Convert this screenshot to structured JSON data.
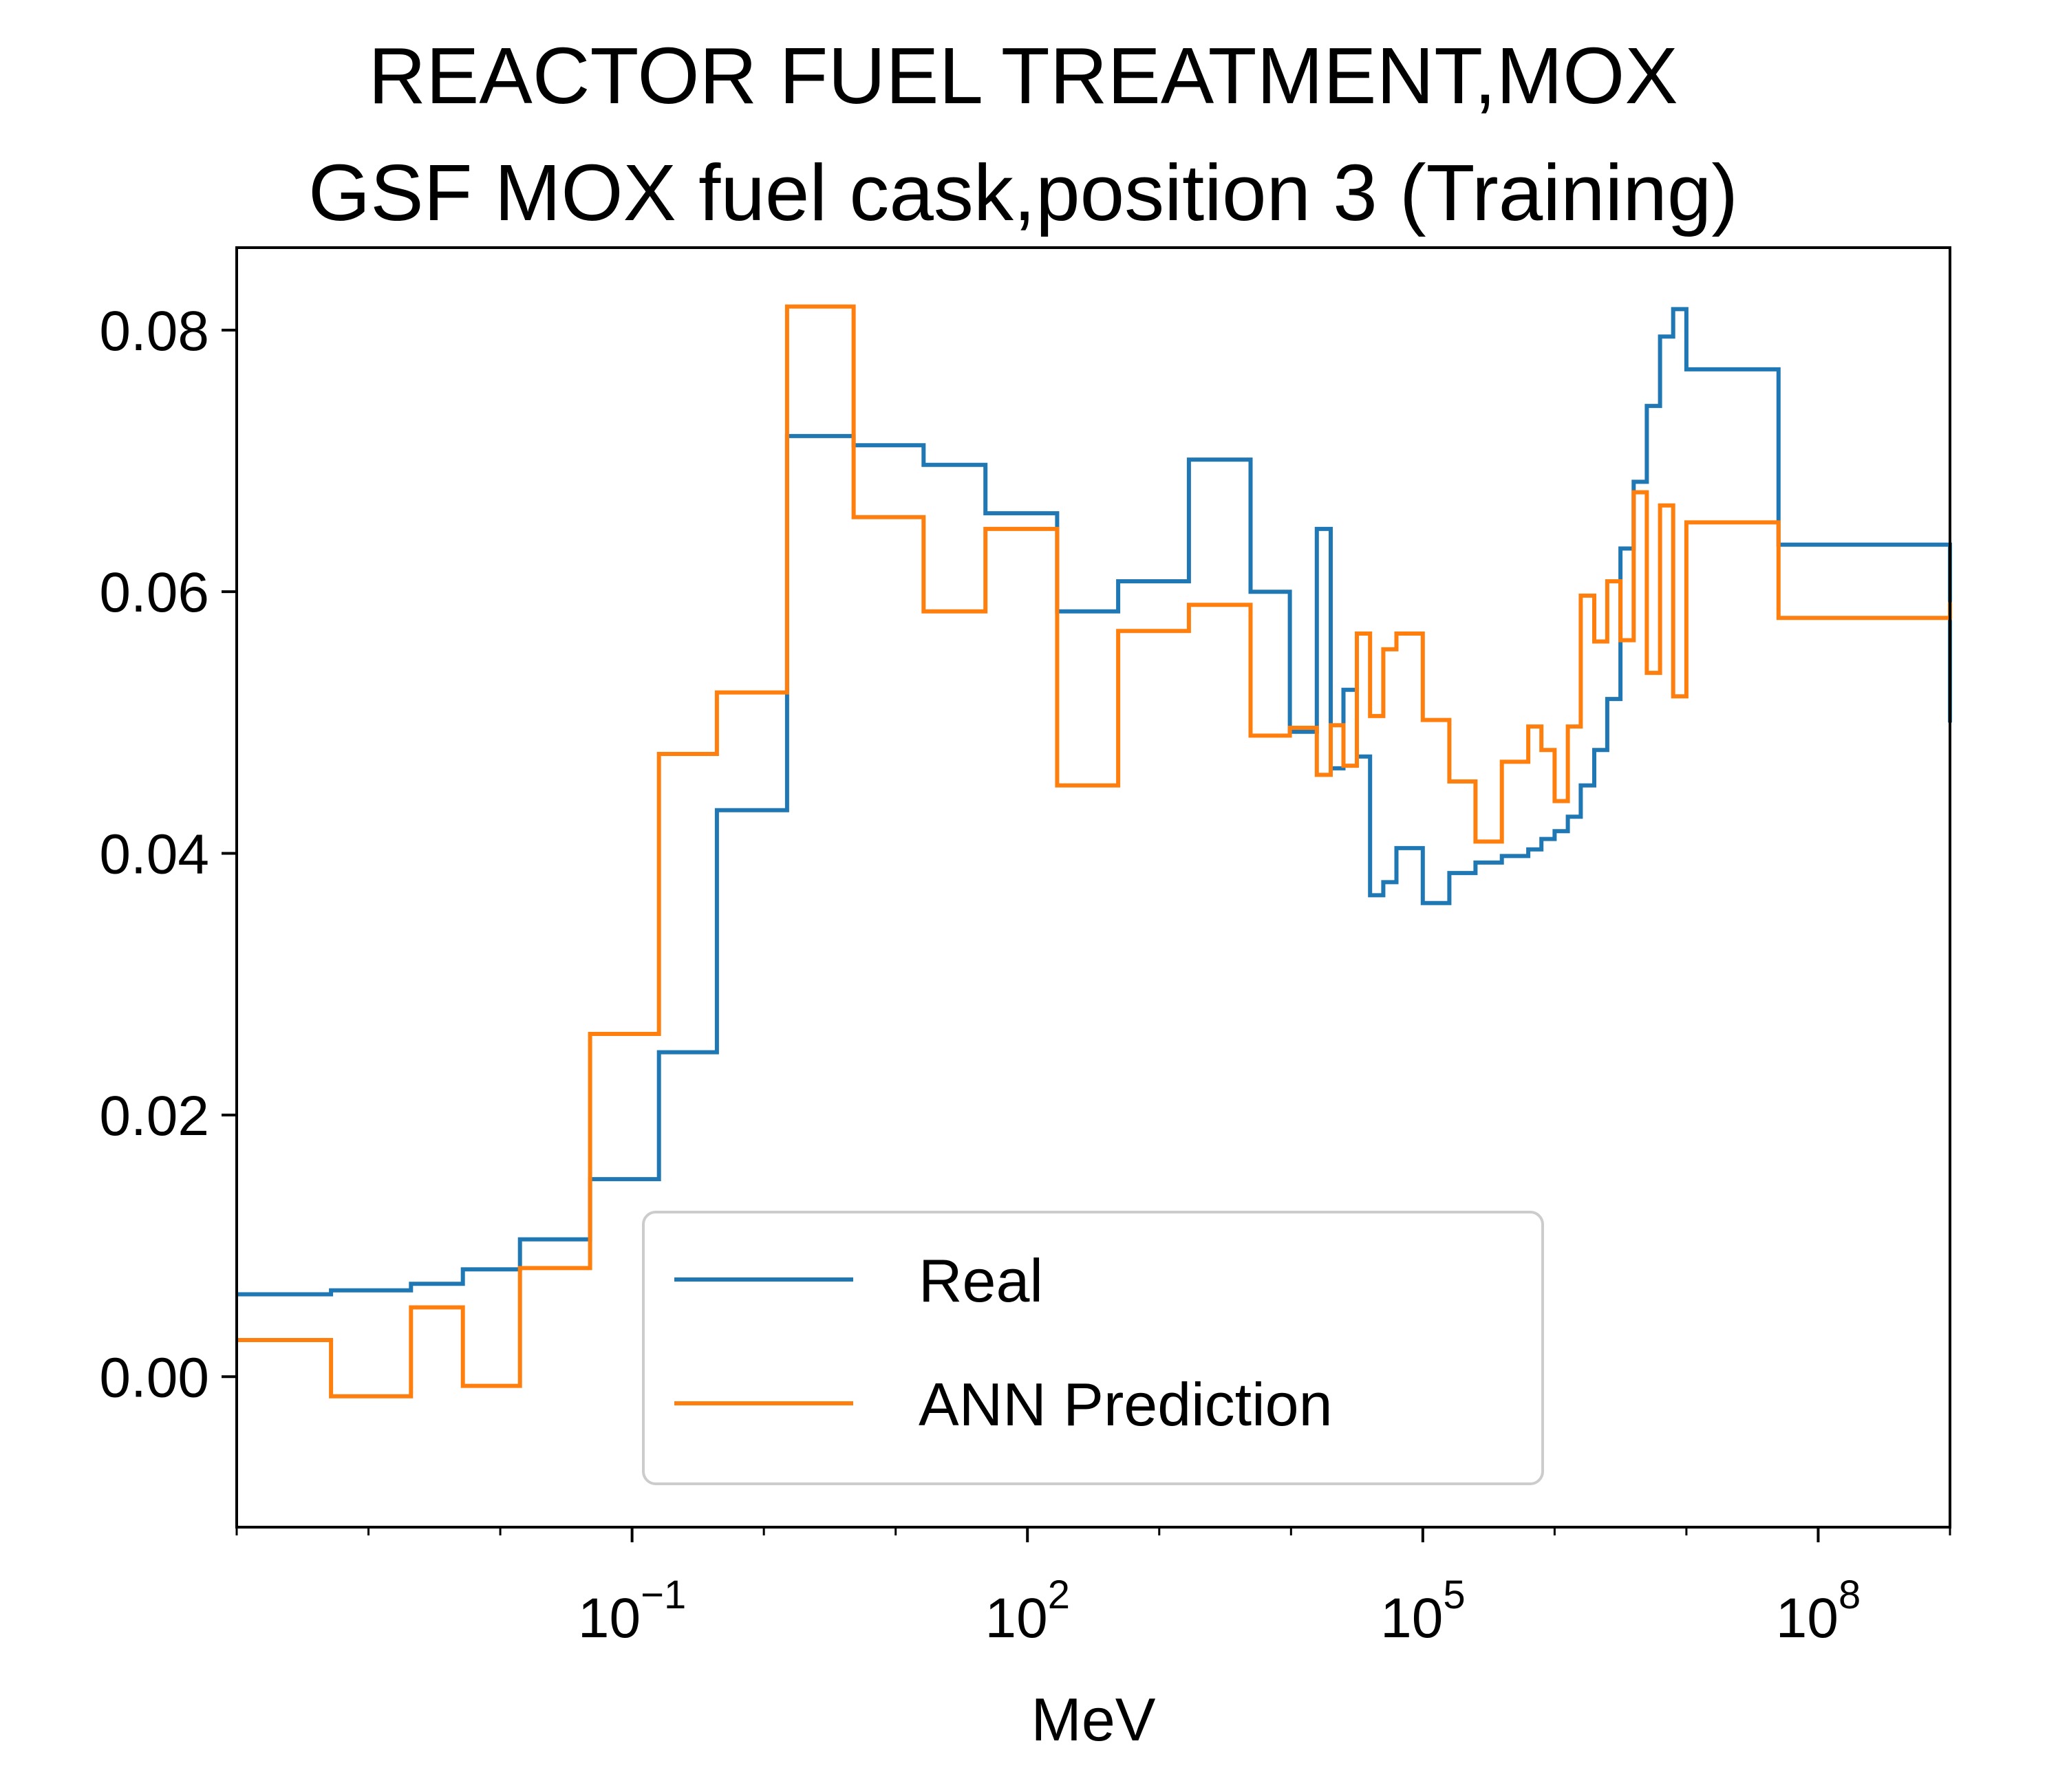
{
  "chart_data": {
    "type": "line",
    "drawstyle": "steps-post",
    "title": "REACTOR FUEL TREATMENT,MOX",
    "subtitle": "GSF MOX fuel cask,position 3 (Training)",
    "xlabel": "MeV",
    "ylabel": "",
    "x_scale": "log",
    "xlim": [
      0.0001,
      1000000000.0
    ],
    "ylim": [
      -0.0115,
      0.0863
    ],
    "x_ticks": [
      {
        "value": 0.1,
        "base": "10",
        "exp": "−1"
      },
      {
        "value": 100,
        "base": "10",
        "exp": "2"
      },
      {
        "value": 100000,
        "base": "10",
        "exp": "5"
      },
      {
        "value": 100000000,
        "base": "10",
        "exp": "8"
      }
    ],
    "y_ticks": [
      {
        "value": 0.08,
        "label": "0.08"
      },
      {
        "value": 0.06,
        "label": "0.06"
      },
      {
        "value": 0.04,
        "label": "0.04"
      },
      {
        "value": 0.02,
        "label": "0.02"
      },
      {
        "value": 0.0,
        "label": "0.00"
      }
    ],
    "grid": false,
    "legend": {
      "position": "lower-center"
    },
    "x": [
      0.0001,
      0.00052,
      0.0021,
      0.0052,
      0.0141,
      0.048,
      0.16,
      0.44,
      1.5,
      4.8,
      16.3,
      48,
      168,
      488,
      1680,
      4930,
      9800,
      15700,
      20000,
      25000,
      31600,
      39800,
      50100,
      63100,
      100000,
      159000,
      251000,
      398000,
      631000,
      794000,
      1000000,
      1260000,
      1580000,
      2000000,
      2510000,
      3160000,
      3980000,
      5010000,
      6310000,
      7940000,
      10000000,
      50000000,
      1000000000
    ],
    "series": [
      {
        "name": "Real",
        "color": "#1f77b4",
        "values": [
          0.0063,
          0.0066,
          0.0071,
          0.0082,
          0.0105,
          0.0151,
          0.0248,
          0.0433,
          0.0719,
          0.0712,
          0.0697,
          0.066,
          0.0585,
          0.0608,
          0.0701,
          0.06,
          0.0493,
          0.0648,
          0.0465,
          0.0525,
          0.0474,
          0.0368,
          0.0378,
          0.0404,
          0.0362,
          0.0385,
          0.0393,
          0.0398,
          0.0403,
          0.0411,
          0.0417,
          0.0428,
          0.0452,
          0.0479,
          0.0518,
          0.0633,
          0.0684,
          0.0742,
          0.0795,
          0.0816,
          0.077,
          0.0636,
          0.05
        ]
      },
      {
        "name": "ANN Prediction",
        "color": "#ff7f0e",
        "values": [
          0.0028,
          -0.0015,
          0.0053,
          -0.0007,
          0.0083,
          0.0262,
          0.0476,
          0.0523,
          0.0818,
          0.0657,
          0.0585,
          0.0648,
          0.0452,
          0.057,
          0.059,
          0.049,
          0.0496,
          0.046,
          0.0498,
          0.0467,
          0.0568,
          0.0505,
          0.0556,
          0.0568,
          0.0502,
          0.0455,
          0.0409,
          0.047,
          0.0497,
          0.0479,
          0.044,
          0.0497,
          0.0597,
          0.0562,
          0.0608,
          0.0563,
          0.0676,
          0.0538,
          0.0666,
          0.052,
          0.0653,
          0.058,
          0.0592
        ]
      }
    ]
  }
}
